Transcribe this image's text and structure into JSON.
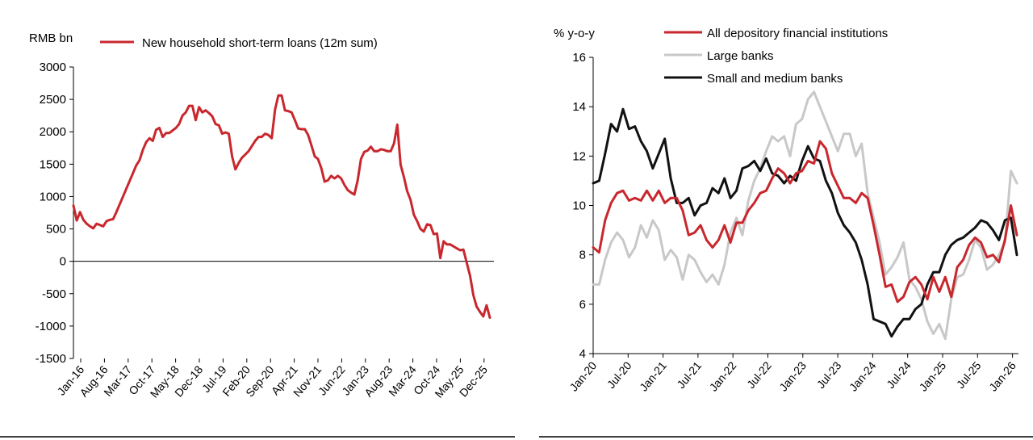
{
  "chart_data": [
    {
      "type": "line",
      "ylabel": "RMB bn",
      "ylim": [
        -1500,
        3000
      ],
      "yticks": [
        "3000",
        "2500",
        "2000",
        "1500",
        "1000",
        "500",
        "0",
        "-500",
        "-1000",
        "-1500"
      ],
      "xticks": [
        "Jan-16",
        "Aug-16",
        "Mar-17",
        "Oct-17",
        "May-18",
        "Dec-18",
        "Jul-19",
        "Feb-20",
        "Sep-20",
        "Apr-21",
        "Nov-21",
        "Jun-22",
        "Jan-23",
        "Aug-23",
        "Mar-24",
        "Oct-24",
        "May-25",
        "Dec-25"
      ],
      "series": [
        {
          "name": "New household short-term loans (12m sum)",
          "color": "#c8272d",
          "values": [
            860,
            630,
            760,
            640,
            580,
            540,
            510,
            580,
            560,
            540,
            620,
            640,
            650,
            760,
            880,
            1000,
            1120,
            1240,
            1360,
            1480,
            1560,
            1720,
            1840,
            1900,
            1860,
            2030,
            2060,
            1920,
            1980,
            1980,
            2020,
            2060,
            2120,
            2250,
            2300,
            2400,
            2400,
            2180,
            2380,
            2300,
            2330,
            2290,
            2240,
            2120,
            2100,
            1970,
            1990,
            1970,
            1620,
            1420,
            1520,
            1600,
            1650,
            1700,
            1780,
            1860,
            1920,
            1920,
            1970,
            1950,
            1900,
            2340,
            2560,
            2560,
            2330,
            2320,
            2300,
            2180,
            2050,
            2040,
            2040,
            1950,
            1790,
            1620,
            1580,
            1440,
            1230,
            1250,
            1320,
            1280,
            1320,
            1280,
            1180,
            1100,
            1060,
            1030,
            1250,
            1580,
            1690,
            1710,
            1770,
            1700,
            1700,
            1730,
            1720,
            1700,
            1700,
            1820,
            2110,
            1490,
            1300,
            1080,
            950,
            720,
            620,
            500,
            460,
            570,
            560,
            420,
            430,
            50,
            310,
            260,
            260,
            230,
            200,
            170,
            180,
            -20,
            -220,
            -520,
            -700,
            -780,
            -850,
            -680,
            -870
          ]
        }
      ]
    },
    {
      "type": "line",
      "ylabel": "% y-o-y",
      "ylim": [
        4,
        16
      ],
      "yticks": [
        "16",
        "14",
        "12",
        "10",
        "8",
        "6",
        "4"
      ],
      "xticks": [
        "Jan-20",
        "Jul-20",
        "Jan-21",
        "Jul-21",
        "Jan-22",
        "Jul-22",
        "Jan-23",
        "Jul-23",
        "Jan-24",
        "Jul-24",
        "Jan-25",
        "Jul-25",
        "Jan-26"
      ],
      "series": [
        {
          "name": "All depository financial institutions",
          "color": "#c8272d",
          "values": [
            8.3,
            8.1,
            9.4,
            10.1,
            10.5,
            10.6,
            10.2,
            10.3,
            10.2,
            10.6,
            10.2,
            10.6,
            10.1,
            10.3,
            10.3,
            9.8,
            8.8,
            8.9,
            9.2,
            8.6,
            8.3,
            8.6,
            9.2,
            8.5,
            9.3,
            9.3,
            9.8,
            10.1,
            10.5,
            10.6,
            11.1,
            11.5,
            11.3,
            10.9,
            11.3,
            11.4,
            11.8,
            11.7,
            12.6,
            12.3,
            11.3,
            10.8,
            10.3,
            10.3,
            10.1,
            10.5,
            10.3,
            9.2,
            8.0,
            6.7,
            6.8,
            6.1,
            6.3,
            6.9,
            7.1,
            6.8,
            6.2,
            7.1,
            6.5,
            7.1,
            6.3,
            7.5,
            7.8,
            8.4,
            8.7,
            8.5,
            7.9,
            8.0,
            7.7,
            8.6,
            10.0,
            8.8
          ]
        },
        {
          "name": "Large banks",
          "color": "#c8c8c8",
          "values": [
            6.8,
            6.8,
            7.8,
            8.5,
            8.9,
            8.6,
            7.9,
            8.3,
            9.2,
            8.7,
            9.4,
            9.0,
            7.8,
            8.2,
            7.9,
            7.0,
            8.0,
            7.8,
            7.3,
            6.9,
            7.2,
            6.8,
            7.6,
            8.9,
            9.5,
            8.8,
            10.2,
            11.0,
            11.5,
            12.2,
            12.8,
            12.6,
            12.8,
            12.0,
            13.3,
            13.5,
            14.3,
            14.6,
            14.0,
            13.4,
            12.8,
            12.2,
            12.9,
            12.9,
            12.0,
            12.5,
            10.5,
            9.5,
            8.5,
            7.2,
            7.5,
            7.9,
            8.5,
            7.0,
            6.7,
            6.2,
            5.3,
            4.8,
            5.2,
            4.6,
            6.2,
            7.1,
            7.2,
            7.8,
            8.6,
            8.3,
            7.4,
            7.6,
            8.0,
            8.5,
            11.4,
            10.9
          ]
        },
        {
          "name": "Small and medium banks",
          "color": "#111111",
          "values": [
            10.9,
            11.0,
            12.1,
            13.3,
            13.0,
            13.9,
            13.1,
            13.2,
            12.6,
            12.2,
            11.5,
            12.1,
            12.7,
            11.1,
            10.1,
            10.1,
            10.3,
            9.6,
            10.0,
            10.1,
            10.7,
            10.5,
            11.1,
            10.3,
            10.6,
            11.5,
            11.6,
            11.8,
            11.4,
            11.9,
            11.3,
            11.2,
            10.9,
            11.2,
            11.0,
            11.8,
            12.4,
            11.9,
            11.8,
            11.0,
            10.5,
            9.7,
            9.2,
            8.9,
            8.5,
            7.8,
            6.8,
            5.4,
            5.3,
            5.2,
            4.7,
            5.1,
            5.4,
            5.4,
            5.8,
            6.0,
            6.8,
            7.3,
            7.3,
            8.0,
            8.4,
            8.6,
            8.7,
            8.9,
            9.1,
            9.4,
            9.3,
            9.0,
            8.6,
            9.4,
            9.5,
            8.0
          ]
        }
      ]
    }
  ]
}
